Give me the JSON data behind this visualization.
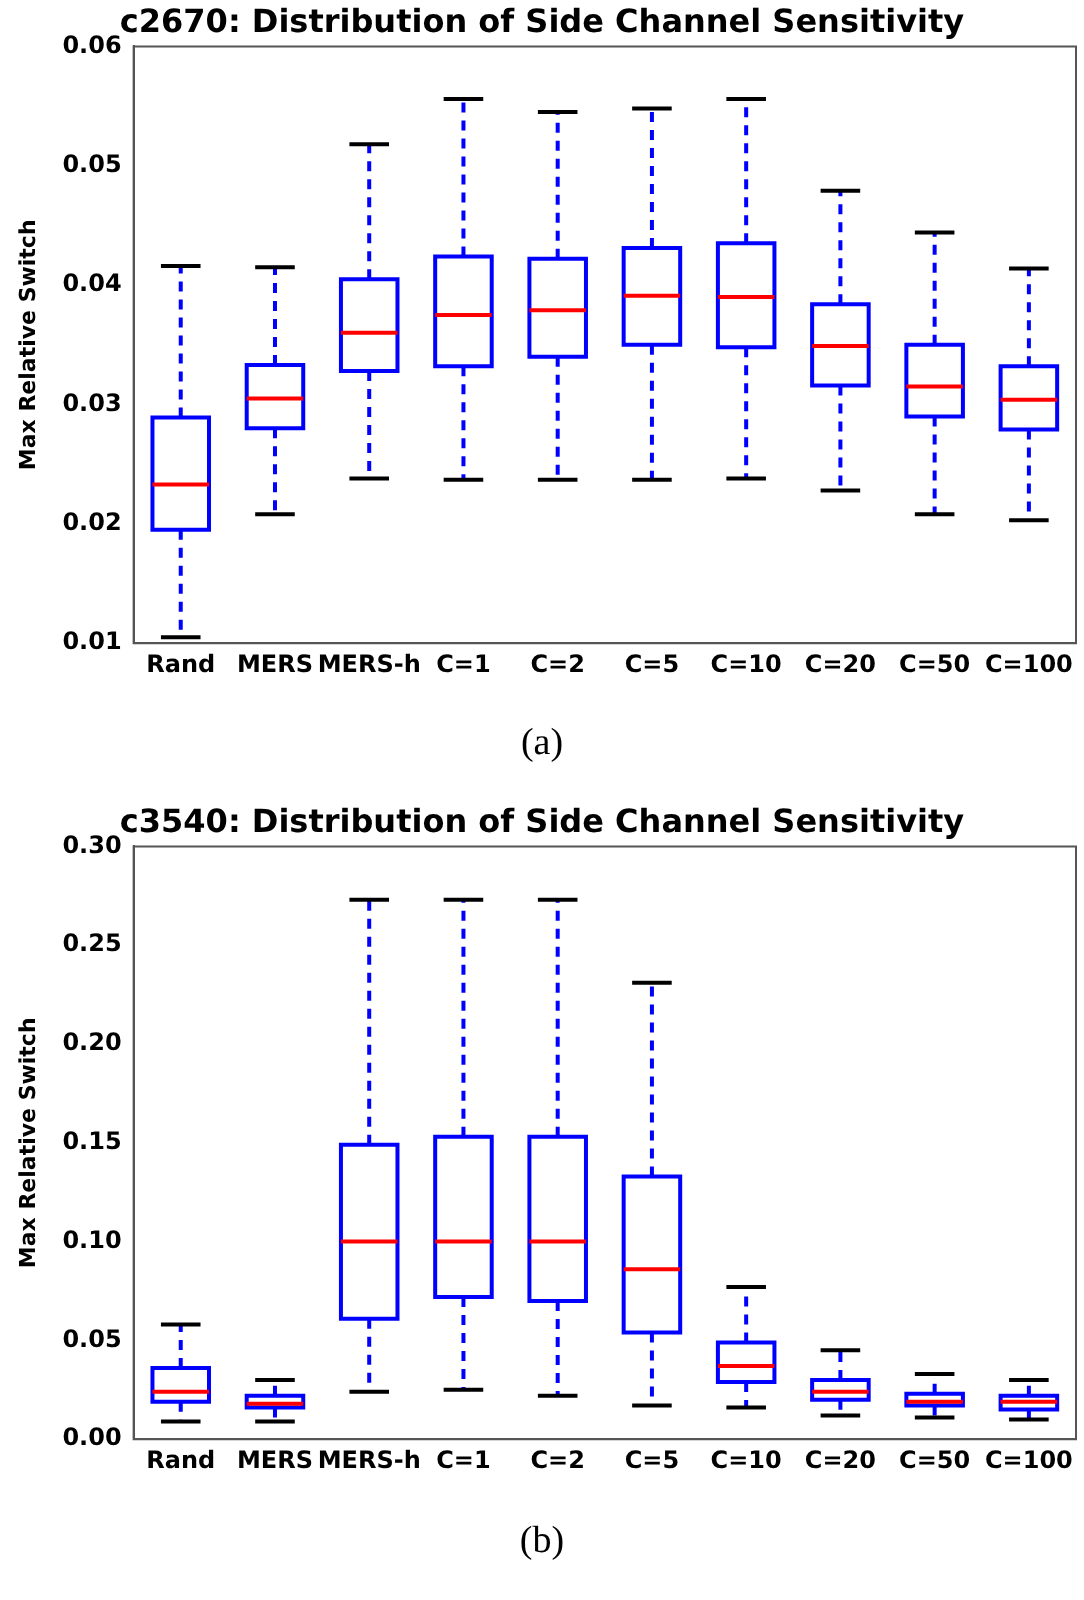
{
  "chart_data": [
    {
      "type": "box",
      "title": "c2670: Distribution of Side Channel Sensitivity",
      "ylabel": "Max Relative Switch",
      "categories": [
        "Rand",
        "MERS",
        "MERS-h",
        "C=1",
        "C=2",
        "C=5",
        "C=10",
        "C=20",
        "C=50",
        "C=100"
      ],
      "color": "#0000ff",
      "boxes": [
        {
          "low": 0.0105,
          "q1": 0.0195,
          "median": 0.0233,
          "q3": 0.0289,
          "high": 0.0416
        },
        {
          "low": 0.0208,
          "q1": 0.028,
          "median": 0.0305,
          "q3": 0.0333,
          "high": 0.0415
        },
        {
          "low": 0.0238,
          "q1": 0.0328,
          "median": 0.036,
          "q3": 0.0405,
          "high": 0.0518
        },
        {
          "low": 0.0237,
          "q1": 0.0332,
          "median": 0.0375,
          "q3": 0.0424,
          "high": 0.0556
        },
        {
          "low": 0.0237,
          "q1": 0.034,
          "median": 0.0379,
          "q3": 0.0422,
          "high": 0.0545
        },
        {
          "low": 0.0237,
          "q1": 0.035,
          "median": 0.0391,
          "q3": 0.0431,
          "high": 0.0548
        },
        {
          "low": 0.0238,
          "q1": 0.0348,
          "median": 0.039,
          "q3": 0.0435,
          "high": 0.0556
        },
        {
          "low": 0.0228,
          "q1": 0.0316,
          "median": 0.0349,
          "q3": 0.0384,
          "high": 0.0479
        },
        {
          "low": 0.0208,
          "q1": 0.029,
          "median": 0.0315,
          "q3": 0.035,
          "high": 0.0444
        },
        {
          "low": 0.0203,
          "q1": 0.0279,
          "median": 0.0304,
          "q3": 0.0332,
          "high": 0.0414
        }
      ],
      "ylim": [
        0.01,
        0.06
      ],
      "yticks": [
        0.01,
        0.02,
        0.03,
        0.04,
        0.05,
        0.06
      ],
      "grid": false,
      "annotations": [
        "(a)"
      ]
    },
    {
      "type": "box",
      "title": "c3540: Distribution of Side Channel Sensitivity",
      "ylabel": "Max Relative Switch",
      "categories": [
        "Rand",
        "MERS",
        "MERS-h",
        "C=1",
        "C=2",
        "C=5",
        "C=10",
        "C=20",
        "C=50",
        "C=100"
      ],
      "color": "#0000ff",
      "boxes": [
        {
          "low": 0.009,
          "q1": 0.019,
          "median": 0.024,
          "q3": 0.036,
          "high": 0.058
        },
        {
          "low": 0.009,
          "q1": 0.016,
          "median": 0.018,
          "q3": 0.022,
          "high": 0.03
        },
        {
          "low": 0.024,
          "q1": 0.061,
          "median": 0.1,
          "q3": 0.149,
          "high": 0.273
        },
        {
          "low": 0.025,
          "q1": 0.072,
          "median": 0.1,
          "q3": 0.153,
          "high": 0.273
        },
        {
          "low": 0.022,
          "q1": 0.07,
          "median": 0.1,
          "q3": 0.153,
          "high": 0.273
        },
        {
          "low": 0.017,
          "q1": 0.054,
          "median": 0.086,
          "q3": 0.133,
          "high": 0.231
        },
        {
          "low": 0.016,
          "q1": 0.029,
          "median": 0.037,
          "q3": 0.049,
          "high": 0.077
        },
        {
          "low": 0.012,
          "q1": 0.02,
          "median": 0.024,
          "q3": 0.03,
          "high": 0.045
        },
        {
          "low": 0.011,
          "q1": 0.017,
          "median": 0.019,
          "q3": 0.023,
          "high": 0.033
        },
        {
          "low": 0.01,
          "q1": 0.015,
          "median": 0.019,
          "q3": 0.022,
          "high": 0.03
        }
      ],
      "ylim": [
        0,
        0.3
      ],
      "yticks": [
        {
          "value": 0,
          "label": "0.00"
        },
        0.05,
        {
          "value": 0.1,
          "label": "0.10"
        },
        0.15,
        {
          "value": 0.2,
          "label": "0.20"
        },
        0.25,
        {
          "value": 0.3,
          "label": "0.30"
        }
      ],
      "grid": false,
      "annotations": [
        "(b)"
      ]
    }
  ]
}
